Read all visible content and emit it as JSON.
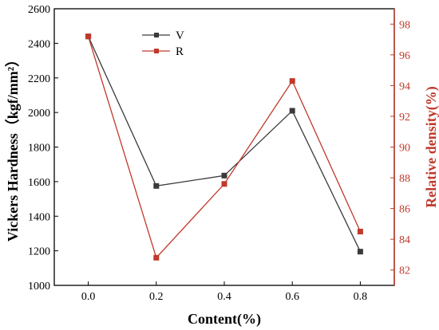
{
  "chart_data": {
    "type": "line",
    "x": [
      0.0,
      0.2,
      0.4,
      0.6,
      0.8
    ],
    "x_tick_labels": [
      "0.0",
      "0.2",
      "0.4",
      "0.6",
      "0.8"
    ],
    "xlim": [
      -0.1,
      0.9
    ],
    "xlabel": "Content(%)",
    "ylabel_left": "Vickers Hardness（kgf/mm²）",
    "ylabel_right": "Relative density(%)",
    "ylim_left": [
      1000,
      2600
    ],
    "ylim_right": [
      81,
      99
    ],
    "y_ticks_left": [
      "1000",
      "1200",
      "1400",
      "1600",
      "1800",
      "2000",
      "2200",
      "2400",
      "2600"
    ],
    "y_ticks_right": [
      "82",
      "84",
      "86",
      "88",
      "90",
      "92",
      "94",
      "96",
      "98"
    ],
    "series": [
      {
        "name": "V",
        "axis": "left",
        "color": "#3a3a3a",
        "values": [
          2440,
          1575,
          1635,
          2010,
          1195
        ]
      },
      {
        "name": "R",
        "axis": "right",
        "color": "#c0392b",
        "values": [
          97.2,
          82.8,
          87.6,
          94.3,
          84.5
        ]
      }
    ],
    "legend": {
      "placement": "top-left-inside"
    },
    "right_axis_color": "#c0392b",
    "grid": false
  }
}
